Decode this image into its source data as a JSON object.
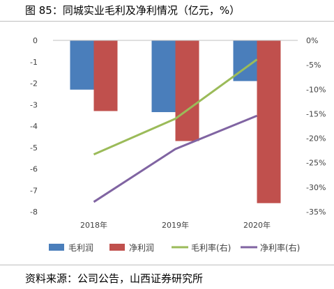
{
  "figure_title": "图 85：同城实业毛利及净利情况（亿元，%）",
  "source": "资料来源：公司公告，山西证券研究所",
  "chart_data": {
    "type": "bar",
    "categories": [
      "2018年",
      "2019年",
      "2020年"
    ],
    "series": [
      {
        "name": "毛利润",
        "axis": "left",
        "kind": "bar",
        "color": "#4a7ebb",
        "values": [
          -2.3,
          -3.35,
          -1.9
        ]
      },
      {
        "name": "净利润",
        "axis": "left",
        "kind": "bar",
        "color": "#c0504d",
        "values": [
          -3.3,
          -4.7,
          -7.6
        ]
      },
      {
        "name": "毛利率(右)",
        "axis": "right",
        "kind": "line",
        "color": "#9bbb59",
        "values": [
          -23.3,
          -16.0,
          -3.9
        ]
      },
      {
        "name": "净利率(右)",
        "axis": "right",
        "kind": "line",
        "color": "#8064a2",
        "values": [
          -33.0,
          -22.2,
          -15.4
        ]
      }
    ],
    "left_axis": {
      "ylim": [
        -8,
        0
      ],
      "ticks": [
        "0",
        "-1",
        "-2",
        "-3",
        "-4",
        "-5",
        "-6",
        "-7",
        "-8"
      ]
    },
    "right_axis": {
      "ylim": [
        -35,
        0
      ],
      "ticks": [
        "0%",
        "-5%",
        "-10%",
        "-15%",
        "-20%",
        "-25%",
        "-30%",
        "-35%"
      ]
    },
    "grid": false,
    "legend_position": "bottom"
  }
}
